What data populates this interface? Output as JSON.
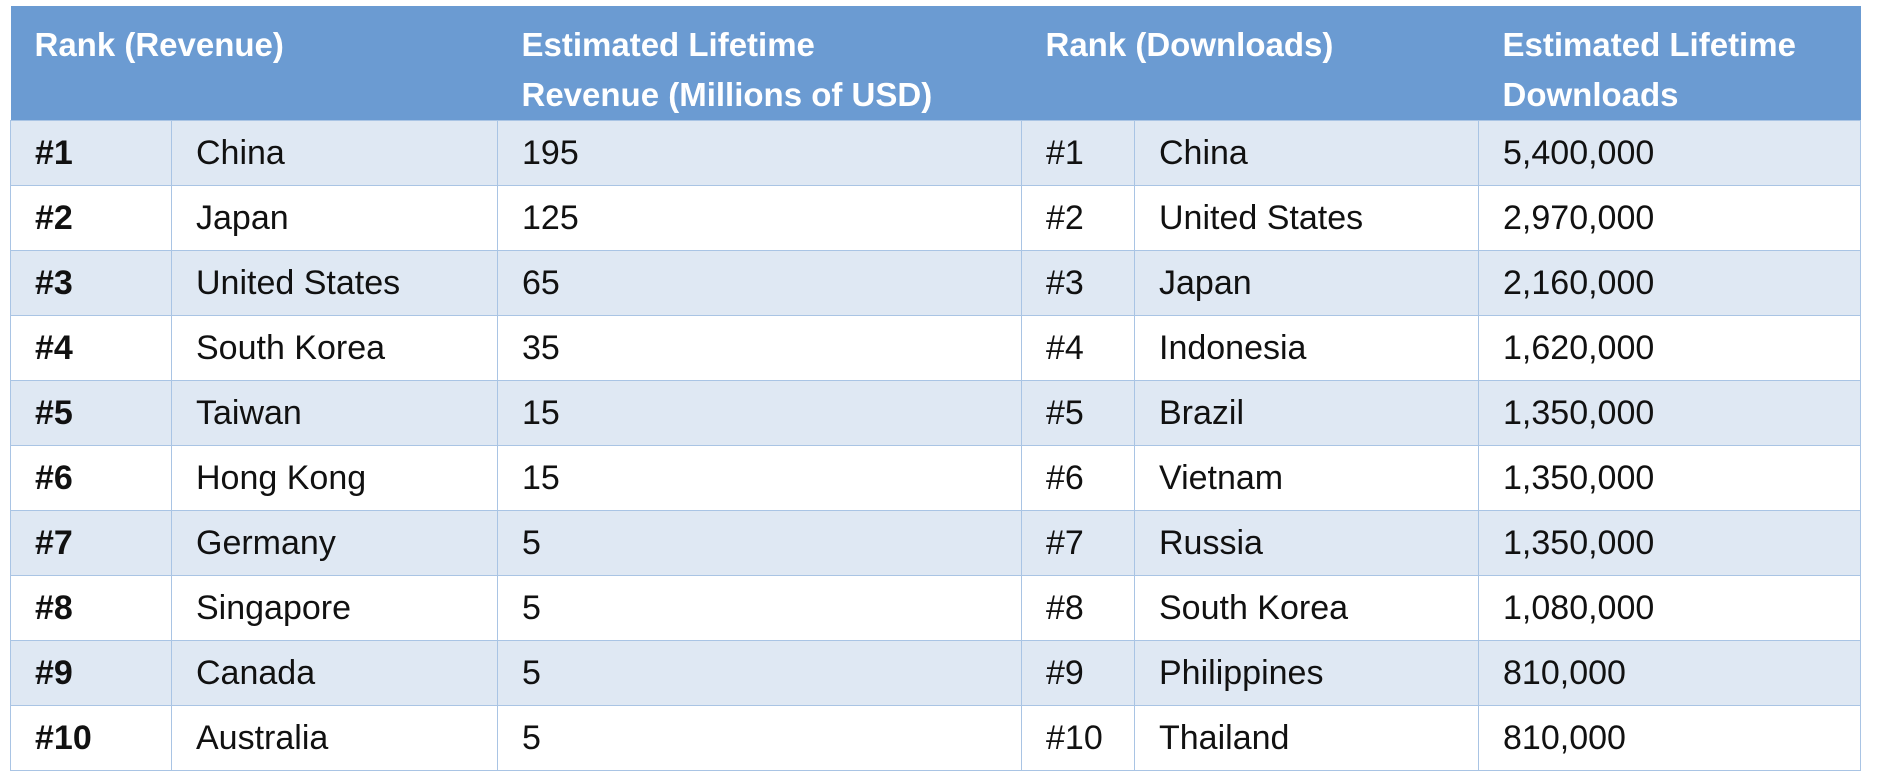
{
  "table": {
    "header": [
      [
        "Rank (Revenue)"
      ],
      [
        "Estimated Lifetime",
        "Revenue (Millions of USD)"
      ],
      [
        "Rank (Downloads)"
      ],
      [
        "Estimated Lifetime",
        "Downloads"
      ]
    ],
    "rows": [
      [
        "#1",
        "China",
        "195",
        "#1",
        "China",
        "5,400,000"
      ],
      [
        "#2",
        "Japan",
        "125",
        "#2",
        "United States",
        "2,970,000"
      ],
      [
        "#3",
        "United States",
        "65",
        "#3",
        "Japan",
        "2,160,000"
      ],
      [
        "#4",
        "South Korea",
        "35",
        "#4",
        "Indonesia",
        "1,620,000"
      ],
      [
        "#5",
        "Taiwan",
        "15",
        "#5",
        "Brazil",
        "1,350,000"
      ],
      [
        "#6",
        "Hong Kong",
        "15",
        "#6",
        "Vietnam",
        "1,350,000"
      ],
      [
        "#7",
        "Germany",
        "5",
        "#7",
        "Russia",
        "1,350,000"
      ],
      [
        "#8",
        "Singapore",
        "5",
        "#8",
        "South Korea",
        "1,080,000"
      ],
      [
        "#9",
        "Canada",
        "5",
        "#9",
        "Philippines",
        "810,000"
      ],
      [
        "#10",
        "Australia",
        "5",
        "#10",
        "Thailand",
        "810,000"
      ]
    ]
  }
}
